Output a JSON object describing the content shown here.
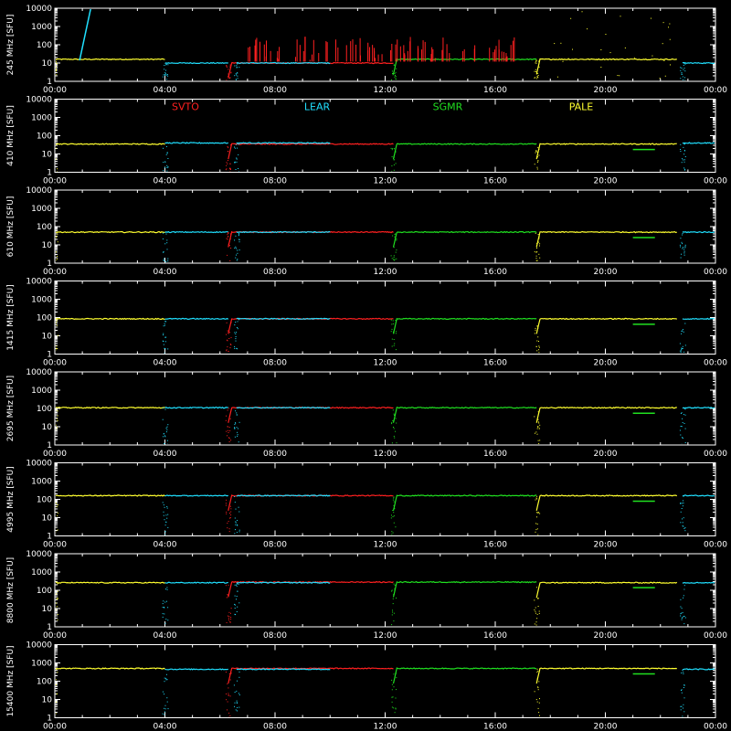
{
  "chart_data": {
    "type": "line",
    "background_color": "#000000",
    "axis_color": "#ffffff",
    "x_range": [
      "00:00",
      "24:00"
    ],
    "x_ticks": [
      "00:00",
      "04:00",
      "08:00",
      "12:00",
      "16:00",
      "20:00",
      "00:00"
    ],
    "y_scale": "log",
    "y_range": [
      1,
      10000
    ],
    "y_ticks": [
      "1",
      "10",
      "100",
      "1000",
      "10000"
    ],
    "legend": [
      {
        "label": "SVTO",
        "color": "#ff2020"
      },
      {
        "label": "LEAR",
        "color": "#20e0ff"
      },
      {
        "label": "SGMR",
        "color": "#20e020"
      },
      {
        "label": "PALE",
        "color": "#ffff30"
      }
    ],
    "legend_panel": 1,
    "series_colors": {
      "SVTO": "#ff2020",
      "LEAR": "#20e0ff",
      "SGMR": "#20e020",
      "PALE": "#ffff30"
    },
    "panels": [
      {
        "ylabel": "245 MHz [SFU]",
        "baseline": 13,
        "level_green": 16,
        "level_red": 10,
        "level_cyan": 10,
        "level_yellow": 16
      },
      {
        "ylabel": "410 MHz [SFU]",
        "baseline": 35,
        "level_green": 35,
        "level_red": 35,
        "level_cyan": 40,
        "level_yellow": 35
      },
      {
        "ylabel": "610 MHz [SFU]",
        "baseline": 50,
        "level_green": 50,
        "level_red": 50,
        "level_cyan": 50,
        "level_yellow": 50
      },
      {
        "ylabel": "1415 MHz [SFU]",
        "baseline": 85,
        "level_green": 85,
        "level_red": 85,
        "level_cyan": 85,
        "level_yellow": 85
      },
      {
        "ylabel": "2695 MHz [SFU]",
        "baseline": 110,
        "level_green": 110,
        "level_red": 110,
        "level_cyan": 110,
        "level_yellow": 110
      },
      {
        "ylabel": "4995 MHz [SFU]",
        "baseline": 160,
        "level_green": 160,
        "level_red": 160,
        "level_cyan": 160,
        "level_yellow": 160
      },
      {
        "ylabel": "8800 MHz [SFU]",
        "baseline": 280,
        "level_green": 280,
        "level_red": 280,
        "level_cyan": 260,
        "level_yellow": 260
      },
      {
        "ylabel": "15400 MHz [SFU]",
        "baseline": 500,
        "level_green": 500,
        "level_red": 500,
        "level_cyan": 450,
        "level_yellow": 500
      }
    ]
  }
}
